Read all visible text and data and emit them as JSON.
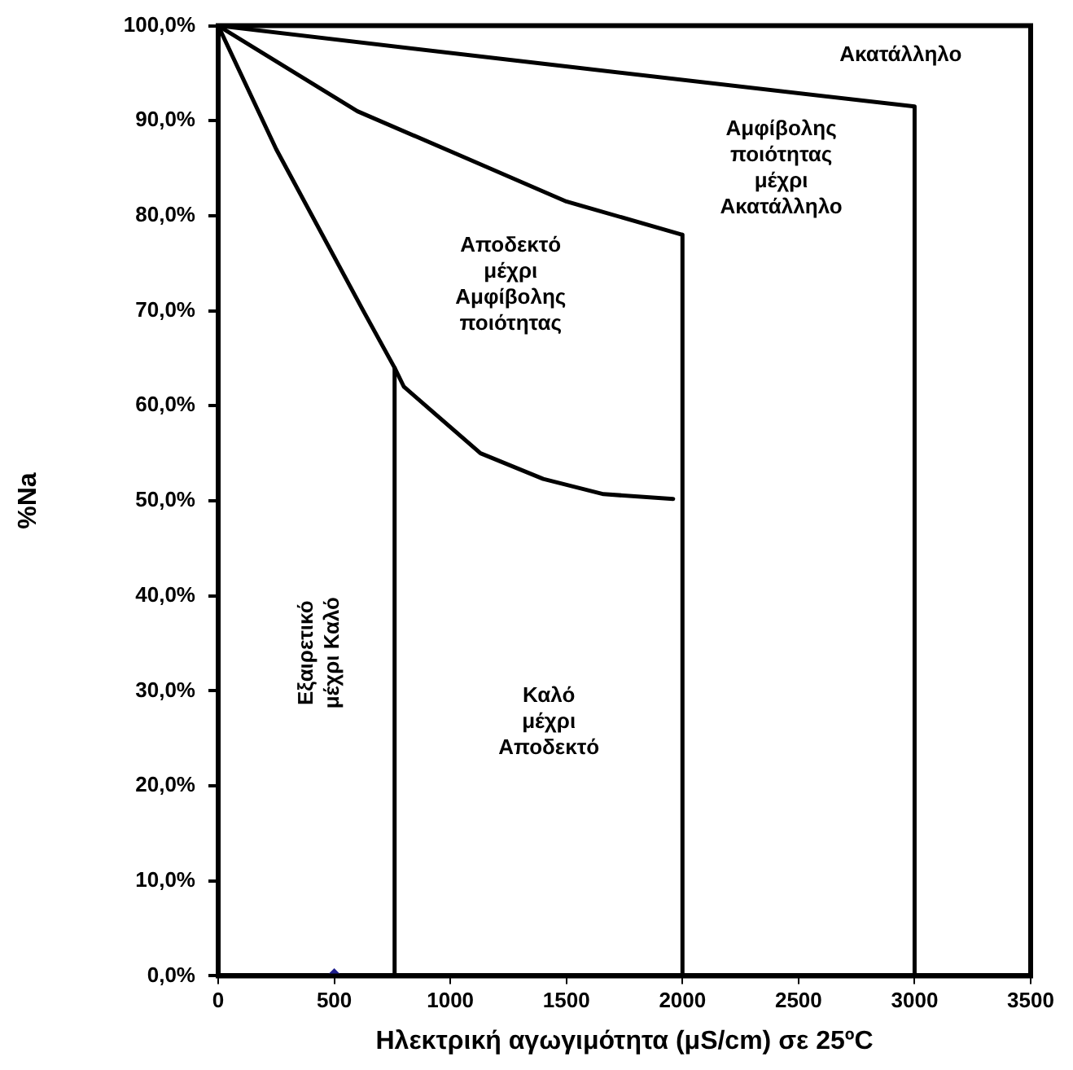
{
  "chart_data": {
    "type": "line",
    "xlabel": "Ηλεκτρική αγωγιμότητα (μS/cm) σε 25ºC",
    "ylabel": "%Na",
    "xlim": [
      0,
      3500
    ],
    "xticks": [
      0,
      500,
      1000,
      1500,
      2000,
      2500,
      3000,
      3500
    ],
    "ylim": [
      0,
      100
    ],
    "yticks": [
      {
        "value": 0,
        "label": "0,0%"
      },
      {
        "value": 10,
        "label": "10,0%"
      },
      {
        "value": 20,
        "label": "20,0%"
      },
      {
        "value": 30,
        "label": "30,0%"
      },
      {
        "value": 40,
        "label": "40,0%"
      },
      {
        "value": 50,
        "label": "50,0%"
      },
      {
        "value": 60,
        "label": "60,0%"
      },
      {
        "value": 70,
        "label": "70,0%"
      },
      {
        "value": 80,
        "label": "80,0%"
      },
      {
        "value": 90,
        "label": "90,0%"
      },
      {
        "value": 100,
        "label": "100,0%"
      }
    ],
    "grid": false,
    "legend": false,
    "marker": "none",
    "line_style": "solid",
    "series": [
      {
        "color": "#000000",
        "x": [
          0,
          1400,
          3000,
          3000
        ],
        "values": [
          100,
          96,
          91.5,
          0
        ]
      },
      {
        "color": "#000000",
        "x": [
          0,
          600,
          1075,
          1500,
          2000,
          2000
        ],
        "values": [
          100,
          91,
          86,
          81.5,
          78,
          0
        ]
      },
      {
        "color": "#000000",
        "x": [
          0,
          250,
          625,
          760,
          800,
          1130,
          1400,
          1660,
          1960
        ],
        "values": [
          100,
          87,
          70,
          64,
          62,
          55,
          52.3,
          50.7,
          50.2
        ]
      },
      {
        "color": "#000000",
        "x": [
          760,
          760
        ],
        "values": [
          64,
          0
        ]
      },
      {
        "type": "scatter",
        "marker": "diamond",
        "color": "#1f1f8f",
        "x": [
          500
        ],
        "values": [
          0
        ]
      }
    ],
    "annotations": [
      "Ακατάλληλο",
      "Αμφίβολης\nποιότητας\nμέχρι\nΑκατάλληλο",
      "Αποδεκτό\nμέχρι\nΑμφίβολης\nποιότητας",
      "Καλό\nμέχρι\nΑποδεκτό",
      "Εξαιρετικό\nμέχρι Καλό"
    ]
  }
}
